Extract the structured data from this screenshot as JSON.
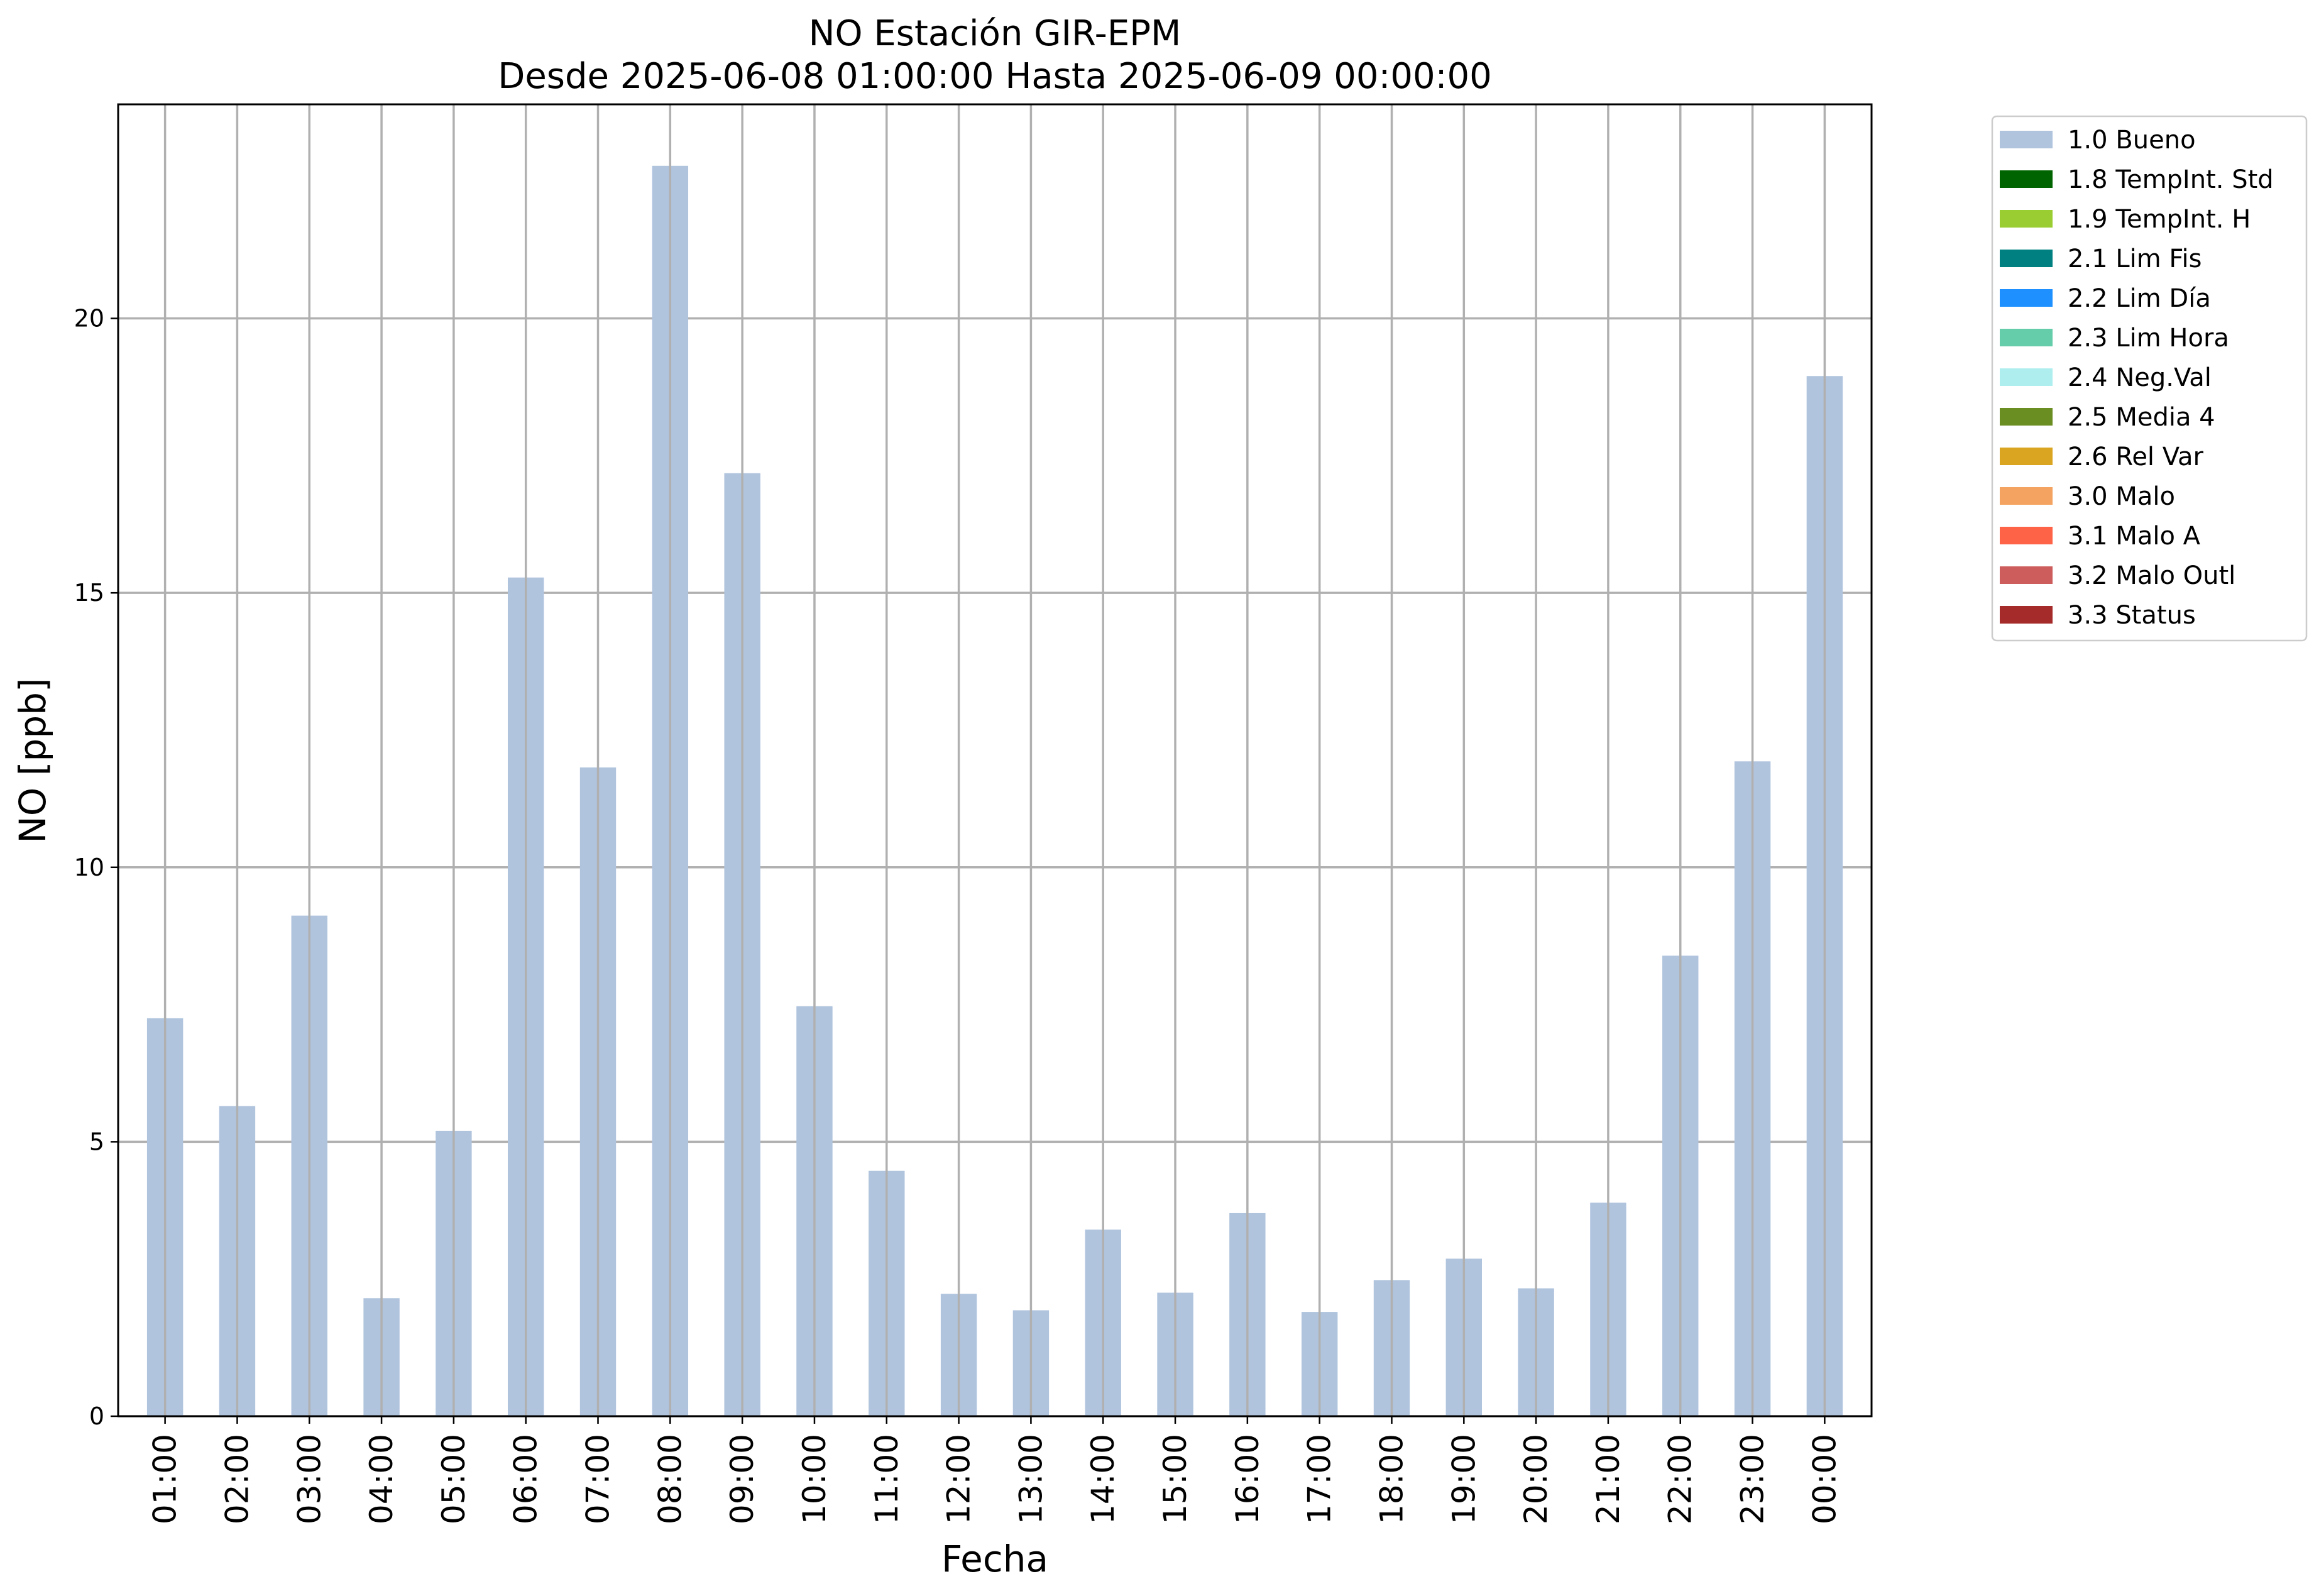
{
  "chart_data": {
    "type": "bar",
    "title": "NO Estación GIR-EPM",
    "subtitle": "Desde 2025-06-08 01:00:00 Hasta 2025-06-09 00:00:00",
    "xlabel": "Fecha",
    "ylabel": "NO [ppb]",
    "ylim": [
      0,
      23.9
    ],
    "yticks": [
      0,
      5,
      10,
      15,
      20
    ],
    "grid": true,
    "legend_position": "outside-right",
    "categories": [
      "01:00",
      "02:00",
      "03:00",
      "04:00",
      "05:00",
      "06:00",
      "07:00",
      "08:00",
      "09:00",
      "10:00",
      "11:00",
      "12:00",
      "13:00",
      "14:00",
      "15:00",
      "16:00",
      "17:00",
      "18:00",
      "19:00",
      "20:00",
      "21:00",
      "22:00",
      "23:00",
      "00:00"
    ],
    "series": [
      {
        "name": "1.0 Bueno",
        "color": "#b0c4de",
        "values": [
          7.25,
          5.65,
          9.12,
          2.15,
          5.2,
          15.28,
          11.82,
          22.78,
          17.18,
          7.47,
          4.47,
          2.23,
          1.93,
          3.4,
          2.25,
          3.7,
          1.9,
          2.48,
          2.87,
          2.33,
          3.89,
          8.39,
          11.93,
          18.95
        ]
      }
    ],
    "legend": [
      {
        "label": "1.0 Bueno",
        "color": "#b0c4de"
      },
      {
        "label": "1.8 TempInt. Std",
        "color": "#006400"
      },
      {
        "label": "1.9 TempInt. H",
        "color": "#9acd32"
      },
      {
        "label": "2.1 Lim Fis",
        "color": "#008080"
      },
      {
        "label": "2.2 Lim Día",
        "color": "#1e90ff"
      },
      {
        "label": "2.3 Lim Hora",
        "color": "#66cdaa"
      },
      {
        "label": "2.4 Neg.Val",
        "color": "#afeeee"
      },
      {
        "label": "2.5 Media 4",
        "color": "#6b8e23"
      },
      {
        "label": "2.6 Rel Var",
        "color": "#daa520"
      },
      {
        "label": "3.0 Malo",
        "color": "#f4a460"
      },
      {
        "label": "3.1 Malo A",
        "color": "#ff6347"
      },
      {
        "label": "3.2 Malo Outl",
        "color": "#cd5c5c"
      },
      {
        "label": "3.3 Status",
        "color": "#a52a2a"
      }
    ]
  }
}
